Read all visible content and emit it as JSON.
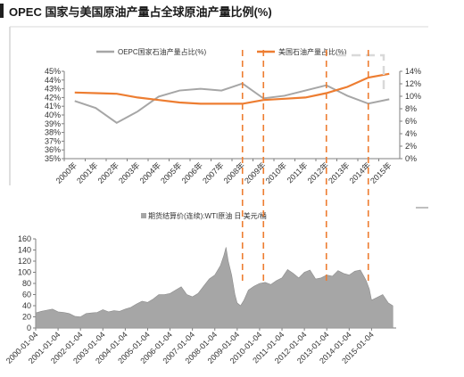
{
  "title": "OPEC 国家与美国原油产量占全球原油产量比例(%)",
  "colors": {
    "opec_line": "#a6a6a6",
    "us_line": "#ed7d31",
    "area_fill": "#a6a6a6",
    "marker_line": "#ed7d31",
    "highlight_box": "#d9d9d9"
  },
  "chart_data": [
    {
      "type": "line",
      "title": "",
      "x": [
        "2000年",
        "2001年",
        "2002年",
        "2003年",
        "2004年",
        "2005年",
        "2006年",
        "2007年",
        "2008年",
        "2009年",
        "2010年",
        "2011年",
        "2012年",
        "2013年",
        "2014年",
        "2015年"
      ],
      "series": [
        {
          "name": "OEPC国家石油产量占比(%)",
          "axis": "left",
          "values": [
            41.6,
            40.8,
            39.1,
            40.4,
            42.1,
            42.8,
            43.0,
            42.8,
            43.6,
            41.9,
            42.2,
            42.8,
            43.4,
            42.2,
            41.3,
            41.8
          ]
        },
        {
          "name": "美国石油产量占比(%)",
          "axis": "right",
          "values": [
            10.6,
            10.5,
            10.4,
            9.8,
            9.4,
            9.0,
            8.8,
            8.8,
            8.8,
            9.4,
            9.6,
            9.8,
            10.5,
            11.5,
            13.0,
            13.6
          ]
        }
      ],
      "y_left": {
        "min": 35,
        "max": 45,
        "step": 1,
        "ticks": [
          "35%",
          "36%",
          "37%",
          "38%",
          "39%",
          "40%",
          "41%",
          "42%",
          "43%",
          "44%",
          "45%"
        ]
      },
      "y_right": {
        "min": 0,
        "max": 14,
        "step": 2,
        "ticks": [
          "0%",
          "2%",
          "4%",
          "6%",
          "8%",
          "10%",
          "12%",
          "14%"
        ]
      },
      "legend_position": "top",
      "grid": false
    },
    {
      "type": "area",
      "title": "",
      "legend": "期货结算价(连续):WTI原油 日 美元/桶",
      "series_name": "期货结算价(连续):WTI原油 日 美元/桶",
      "x_ticks": [
        "2000-01-04",
        "2001-01-04",
        "2002-01-04",
        "2003-01-04",
        "2004-01-04",
        "2005-01-04",
        "2006-01-04",
        "2007-01-04",
        "2008-01-04",
        "2009-01-04",
        "2010-01-04",
        "2011-01-04",
        "2012-01-04",
        "2013-01-04",
        "2014-01-04",
        "2015-01-04"
      ],
      "y_ticks": [
        "0",
        "20",
        "40",
        "60",
        "80",
        "100",
        "120",
        "140",
        "160"
      ],
      "ylim": [
        0,
        160
      ],
      "x": [
        2000.0,
        2000.25,
        2000.5,
        2000.75,
        2001.0,
        2001.25,
        2001.5,
        2001.75,
        2002.0,
        2002.25,
        2002.5,
        2002.75,
        2003.0,
        2003.25,
        2003.5,
        2003.75,
        2004.0,
        2004.25,
        2004.5,
        2004.75,
        2005.0,
        2005.25,
        2005.5,
        2005.75,
        2006.0,
        2006.25,
        2006.5,
        2006.75,
        2007.0,
        2007.25,
        2007.5,
        2007.75,
        2008.0,
        2008.25,
        2008.4,
        2008.5,
        2008.6,
        2008.75,
        2008.9,
        2009.0,
        2009.15,
        2009.3,
        2009.5,
        2009.75,
        2010.0,
        2010.25,
        2010.5,
        2010.75,
        2011.0,
        2011.25,
        2011.5,
        2011.75,
        2012.0,
        2012.25,
        2012.5,
        2012.75,
        2013.0,
        2013.25,
        2013.5,
        2013.75,
        2014.0,
        2014.25,
        2014.5,
        2014.75,
        2014.9,
        2015.0,
        2015.25,
        2015.5,
        2015.75,
        2015.95
      ],
      "values": [
        27,
        30,
        32,
        34,
        29,
        28,
        26,
        21,
        20,
        26,
        27,
        28,
        33,
        29,
        31,
        30,
        34,
        37,
        43,
        48,
        46,
        52,
        60,
        60,
        62,
        68,
        74,
        60,
        56,
        62,
        75,
        88,
        95,
        112,
        130,
        145,
        120,
        95,
        60,
        45,
        40,
        50,
        68,
        75,
        80,
        82,
        78,
        85,
        90,
        105,
        98,
        90,
        100,
        104,
        88,
        90,
        95,
        93,
        103,
        98,
        95,
        102,
        104,
        86,
        70,
        50,
        55,
        60,
        45,
        40
      ]
    }
  ],
  "event_markers": [
    "2008年",
    "2009年",
    "2012年",
    "2014年"
  ]
}
